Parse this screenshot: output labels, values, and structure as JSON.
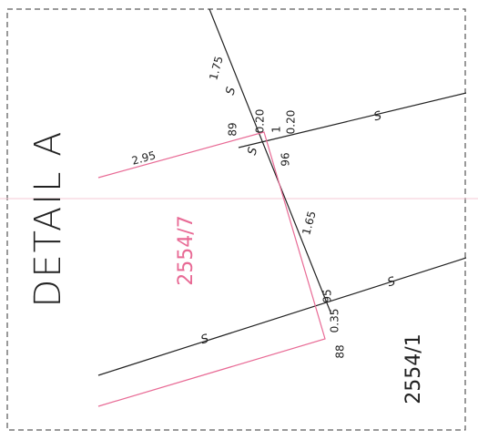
{
  "title": "DETAIL A",
  "dimensions": [
    "1.75",
    "0.20",
    "89",
    "1",
    "0.20",
    "2.95",
    "96",
    "1.65",
    "95",
    "0.35",
    "88"
  ],
  "parcels": [
    "2554/7",
    "2554/1"
  ],
  "line_symbols": [
    "S",
    "S",
    "S",
    "S",
    "S"
  ]
}
